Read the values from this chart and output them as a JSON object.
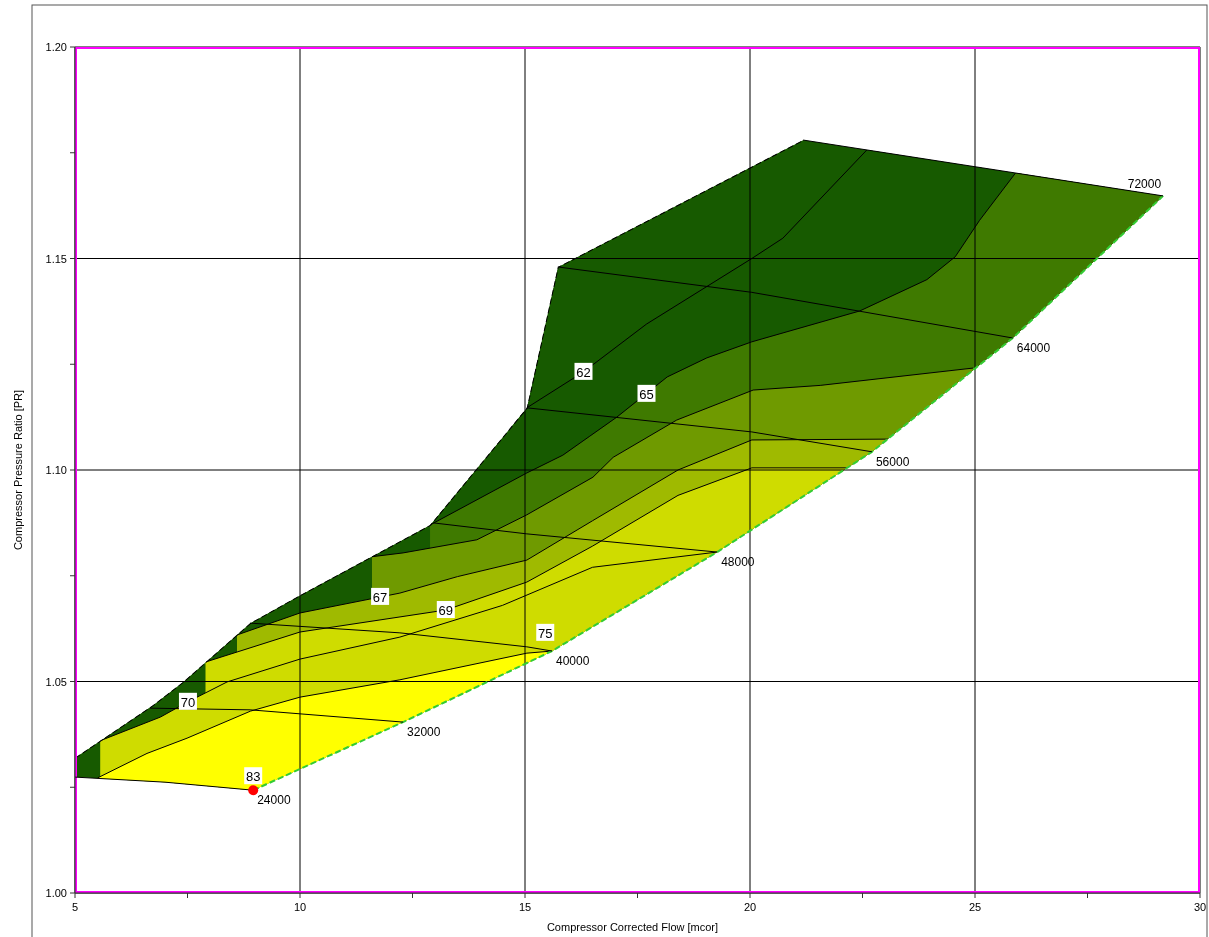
{
  "chart_data": {
    "type": "line",
    "xlabel": "Compressor Corrected Flow [mcor]",
    "ylabel": "Compressor Pressure Ratio [PR]",
    "xlim": [
      5,
      30
    ],
    "ylim": [
      1,
      1.2
    ],
    "xticks": [
      5,
      {
        "value": 7.5,
        "label": null
      },
      10,
      {
        "value": 12.5,
        "label": null
      },
      15,
      {
        "value": 17.5,
        "label": null
      },
      20,
      {
        "value": 22.5,
        "label": null
      },
      25,
      {
        "value": 27.5,
        "label": null
      },
      30
    ],
    "yticks": [
      {
        "value": 1,
        "label": "1.00"
      },
      {
        "value": 1.025,
        "label": null
      },
      {
        "value": 1.05,
        "label": "1.05"
      },
      {
        "value": 1.075,
        "label": null
      },
      {
        "value": 1.1,
        "label": "1.10"
      },
      {
        "value": 1.125,
        "label": null
      },
      {
        "value": 1.15,
        "label": "1.15"
      },
      {
        "value": 1.175,
        "label": null
      },
      {
        "value": 1.2,
        "label": "1.20"
      }
    ],
    "grid": true,
    "series": [
      {
        "color": "#33cc33",
        "line_style": "dashed",
        "x": [
          8.96,
          12.29,
          15.6,
          19.27,
          22.71,
          25.84,
          29.18
        ],
        "values": [
          1.0243,
          1.0404,
          1.0572,
          1.0806,
          1.1043,
          1.1312,
          1.1648
        ]
      },
      {
        "name": "24000",
        "color": "#000000",
        "x": [
          5,
          7,
          8.96
        ],
        "values": [
          1.0274,
          1.0262,
          1.0243
        ]
      },
      {
        "name": "32000",
        "color": "#000000",
        "x": [
          6.67,
          8.89,
          12.29
        ],
        "values": [
          1.0437,
          1.0433,
          1.0404
        ]
      },
      {
        "name": "40000",
        "color": "#000000",
        "x": [
          8.89,
          12.22,
          15.04,
          15.6
        ],
        "values": [
          1.0638,
          1.0615,
          1.0582,
          1.0572
        ]
      },
      {
        "name": "48000",
        "color": "#000000",
        "x": [
          12.96,
          15.04,
          19.27
        ],
        "values": [
          1.0875,
          1.0849,
          1.0806
        ]
      },
      {
        "name": "56000",
        "color": "#000000",
        "x": [
          15.04,
          20.04,
          22.71
        ],
        "values": [
          1.1147,
          1.109,
          1.1043
        ]
      },
      {
        "name": "64000",
        "color": "#000000",
        "x": [
          15.73,
          20.04,
          25.84
        ],
        "values": [
          1.148,
          1.142,
          1.1312
        ]
      },
      {
        "name": "72000",
        "color": "#000000",
        "x": [
          21.18,
          29.18
        ],
        "values": [
          1.178,
          1.1648
        ]
      },
      {
        "type": "area",
        "color": "#175a00",
        "x": [
          15.04,
          16.3,
          17.7,
          20.04,
          20.73,
          22.6
        ],
        "values": [
          1.1147,
          1.1232,
          1.1345,
          1.15,
          1.1548,
          1.1757
        ]
      },
      {
        "type": "area",
        "color": "#3f7a00",
        "x": [
          12.89,
          15.04,
          15.84,
          16.44,
          17.04,
          18.16,
          19.04,
          20.04,
          22.44,
          23.93,
          24.56,
          25.1,
          25.9
        ],
        "values": [
          1.087,
          1.0993,
          1.1035,
          1.108,
          1.1125,
          1.122,
          1.1265,
          1.1303,
          1.1376,
          1.145,
          1.1504,
          1.159,
          1.1702
        ]
      },
      {
        "type": "area",
        "color": "#6f9a00",
        "x": [
          11.6,
          12.29,
          13.93,
          15.04,
          16.51,
          16.96,
          18.37,
          20.07,
          21.56,
          24.96
        ],
        "values": [
          1.0795,
          1.0804,
          1.0835,
          1.0894,
          1.0983,
          1.103,
          1.1118,
          1.1189,
          1.12,
          1.1241
        ]
      },
      {
        "type": "area",
        "color": "#9fba00",
        "x": [
          8.6,
          10,
          12.22,
          13.5,
          15.04,
          16.5,
          18.4,
          20.04,
          23.07
        ],
        "values": [
          1.061,
          1.0662,
          1.0709,
          1.0748,
          1.0787,
          1.088,
          1.1,
          1.1071,
          1.1073
        ]
      },
      {
        "type": "area",
        "color": "#cfdc00",
        "x": [
          7.9,
          10,
          13.24,
          15.04,
          16.5,
          18.4,
          20.04,
          22.16
        ],
        "values": [
          1.0546,
          1.0617,
          1.0669,
          1.0735,
          1.082,
          1.094,
          1.1005,
          1.1005
        ]
      },
      {
        "type": "area",
        "color": "#cfdc00",
        "x": [
          5.56,
          6.9,
          7.51,
          8.38,
          10,
          12.22,
          14.5,
          16.5,
          19.27
        ],
        "values": [
          1.036,
          1.0416,
          1.0452,
          1.0499,
          1.0553,
          1.0605,
          1.068,
          1.077,
          1.0806
        ]
      },
      {
        "type": "area",
        "color": "#ffff00",
        "x": [
          5.5,
          6.6,
          7.49,
          8.9,
          10,
          12.22,
          15.04,
          15.6
        ],
        "values": [
          1.0272,
          1.033,
          1.0366,
          1.043,
          1.0463,
          1.0504,
          1.0567,
          1.0572
        ]
      },
      {
        "type": "area",
        "color": "#175a00",
        "line_style": "dashed",
        "x": [
          5,
          6.73,
          7.4,
          8.89,
          10,
          12.89,
          15.04,
          15.73,
          21.18
        ],
        "values": [
          1.032,
          1.0444,
          1.0499,
          1.0638,
          1.0704,
          1.087,
          1.1147,
          1.148,
          1.178
        ]
      },
      {
        "type": "scatter",
        "color": "#ff0000",
        "marker": "circle",
        "x": [
          8.96
        ],
        "values": [
          1.0243
        ]
      }
    ],
    "annotations": [
      {
        "text": "62",
        "x": 16.3,
        "y": 1.1232
      },
      {
        "text": "65",
        "x": 17.7,
        "y": 1.118
      },
      {
        "text": "67",
        "x": 11.78,
        "y": 1.07
      },
      {
        "text": "69",
        "x": 13.24,
        "y": 1.0669
      },
      {
        "text": "70",
        "x": 7.51,
        "y": 1.0452
      },
      {
        "text": "75",
        "x": 15.45,
        "y": 1.0615
      },
      {
        "text": "83",
        "x": 8.96,
        "y": 1.0243
      }
    ]
  }
}
